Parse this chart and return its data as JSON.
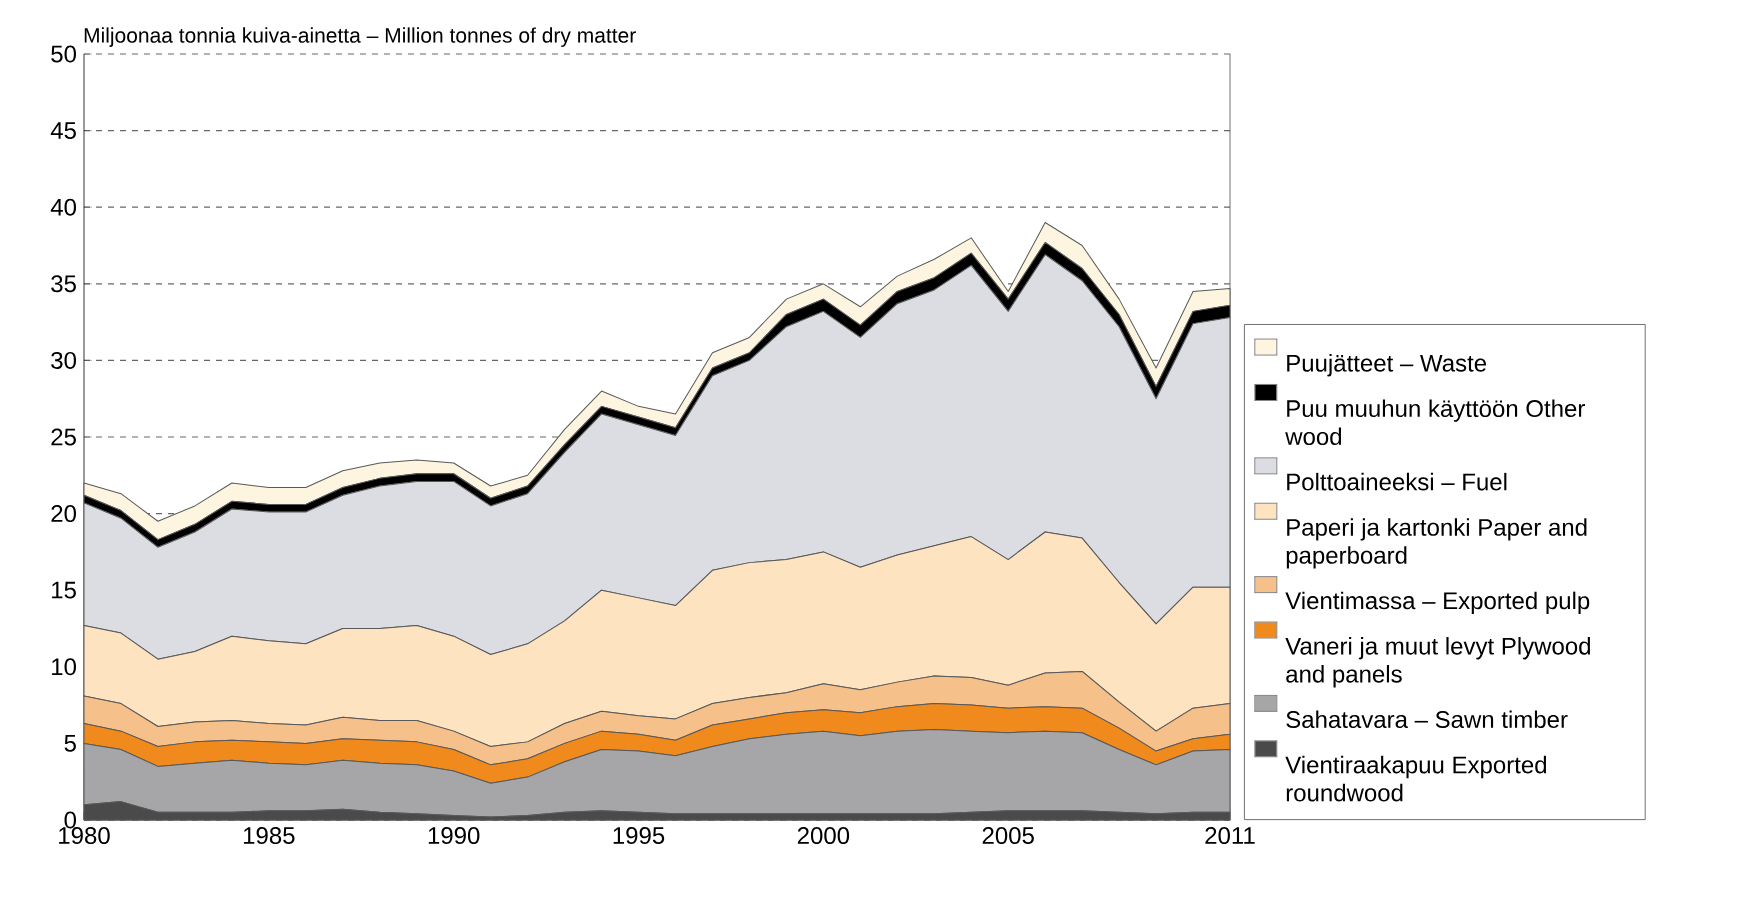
{
  "chart_data": {
    "type": "area",
    "stacked": true,
    "ylabel": "Miljoonaa tonnia kuiva-ainetta – Million tonnes of dry matter",
    "x": [
      1980,
      1981,
      1982,
      1983,
      1984,
      1985,
      1986,
      1987,
      1988,
      1989,
      1990,
      1991,
      1992,
      1993,
      1994,
      1995,
      1996,
      1997,
      1998,
      1999,
      2000,
      2001,
      2002,
      2003,
      2004,
      2005,
      2006,
      2007,
      2008,
      2009,
      2010,
      2011
    ],
    "xlim": [
      1980,
      2011
    ],
    "xticks": [
      1980,
      1985,
      1990,
      1995,
      2000,
      2005,
      2011
    ],
    "ylim": [
      0,
      50
    ],
    "yticks": [
      0,
      5,
      10,
      15,
      20,
      25,
      30,
      35,
      40,
      45,
      50
    ],
    "grid": "y",
    "legend": "right",
    "series": [
      {
        "name": "Vientiraakapuu Exported roundwood",
        "color": "#4a4a4a",
        "values": [
          1.0,
          1.2,
          0.5,
          0.5,
          0.5,
          0.6,
          0.6,
          0.7,
          0.5,
          0.4,
          0.3,
          0.2,
          0.3,
          0.5,
          0.6,
          0.5,
          0.4,
          0.4,
          0.4,
          0.4,
          0.4,
          0.4,
          0.4,
          0.4,
          0.5,
          0.6,
          0.6,
          0.6,
          0.5,
          0.4,
          0.5,
          0.5
        ]
      },
      {
        "name": "Sahatavara – Sawn timber",
        "color": "#a6a6a8",
        "values": [
          4.0,
          3.4,
          3.0,
          3.2,
          3.4,
          3.1,
          3.0,
          3.2,
          3.2,
          3.2,
          2.9,
          2.2,
          2.5,
          3.3,
          4.0,
          4.0,
          3.8,
          4.4,
          4.9,
          5.2,
          5.4,
          5.1,
          5.4,
          5.5,
          5.3,
          5.1,
          5.2,
          5.1,
          4.1,
          3.2,
          4.0,
          4.1
        ]
      },
      {
        "name": "Vaneri ja muut levyt Plywood and panels",
        "color": "#f08a1c",
        "values": [
          1.3,
          1.2,
          1.3,
          1.4,
          1.3,
          1.4,
          1.4,
          1.4,
          1.5,
          1.5,
          1.4,
          1.2,
          1.2,
          1.2,
          1.2,
          1.1,
          1.0,
          1.4,
          1.3,
          1.4,
          1.4,
          1.5,
          1.6,
          1.7,
          1.7,
          1.6,
          1.6,
          1.6,
          1.4,
          0.9,
          0.8,
          1.0
        ]
      },
      {
        "name": "Vientimassa – Exported pulp",
        "color": "#f6c08a",
        "values": [
          1.8,
          1.8,
          1.3,
          1.3,
          1.3,
          1.2,
          1.2,
          1.4,
          1.3,
          1.4,
          1.2,
          1.2,
          1.1,
          1.3,
          1.3,
          1.2,
          1.4,
          1.4,
          1.4,
          1.3,
          1.7,
          1.5,
          1.6,
          1.8,
          1.8,
          1.5,
          2.2,
          2.4,
          1.7,
          1.3,
          2.0,
          2.0
        ]
      },
      {
        "name": "Paperi ja kartonki Paper and paperboard",
        "color": "#fde3c0",
        "values": [
          4.6,
          4.6,
          4.4,
          4.6,
          5.5,
          5.4,
          5.3,
          5.8,
          6.0,
          6.2,
          6.2,
          6.0,
          6.4,
          6.7,
          7.9,
          7.7,
          7.4,
          8.7,
          8.8,
          8.7,
          8.6,
          8.0,
          8.3,
          8.5,
          9.2,
          8.2,
          9.2,
          8.7,
          7.8,
          7.0,
          7.9,
          7.6
        ]
      },
      {
        "name": "Polttoaineeksi – Fuel",
        "color": "#dcdde3",
        "values": [
          8.0,
          7.5,
          7.3,
          7.8,
          8.3,
          8.4,
          8.6,
          8.7,
          9.3,
          9.4,
          10.1,
          9.7,
          9.8,
          11.0,
          11.5,
          11.3,
          11.1,
          12.7,
          13.2,
          15.2,
          15.7,
          15.0,
          16.4,
          16.7,
          17.7,
          16.2,
          18.1,
          16.8,
          16.7,
          14.7,
          17.2,
          17.6
        ]
      },
      {
        "name": "Puu muuhun käyttöön Other wood",
        "color": "#000000",
        "values": [
          0.5,
          0.5,
          0.5,
          0.5,
          0.5,
          0.5,
          0.5,
          0.5,
          0.5,
          0.5,
          0.5,
          0.5,
          0.5,
          0.5,
          0.5,
          0.5,
          0.5,
          0.5,
          0.5,
          0.8,
          0.8,
          0.8,
          0.8,
          0.8,
          0.8,
          0.8,
          0.8,
          0.8,
          0.8,
          0.8,
          0.8,
          0.8
        ]
      },
      {
        "name": "Puujätteet – Waste",
        "color": "#fdf5e0",
        "values": [
          0.8,
          1.1,
          1.2,
          1.2,
          1.2,
          1.1,
          1.1,
          1.1,
          1.0,
          0.9,
          0.7,
          0.8,
          0.7,
          1.0,
          1.0,
          0.7,
          0.9,
          1.0,
          1.0,
          1.0,
          1.0,
          1.2,
          1.0,
          1.2,
          1.0,
          0.5,
          1.3,
          1.5,
          1.0,
          1.2,
          1.3,
          1.1
        ]
      }
    ]
  }
}
